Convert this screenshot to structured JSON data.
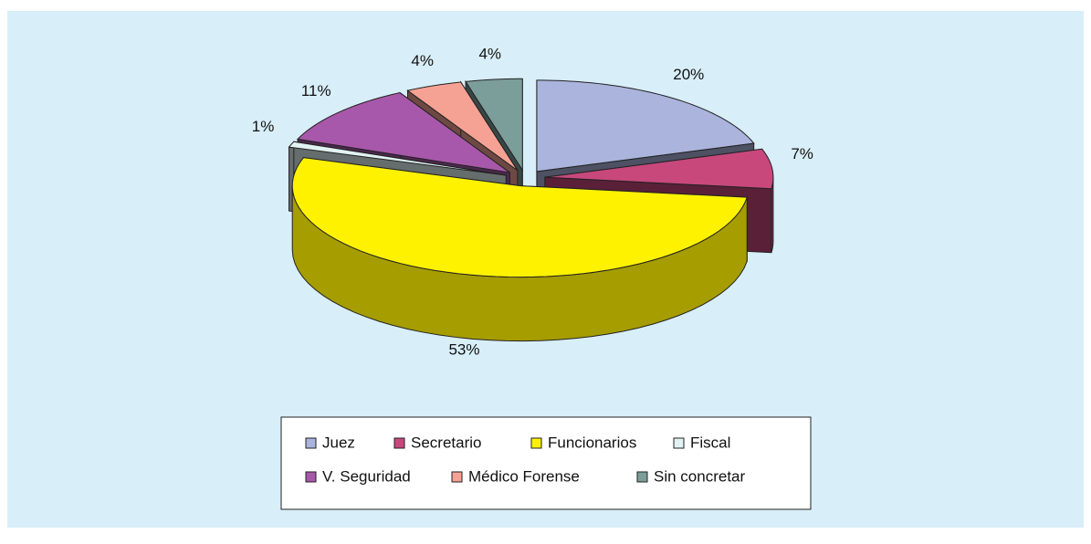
{
  "chart_data": {
    "type": "pie3d",
    "categories": [
      "Juez",
      "Secretario",
      "Funcionarios",
      "Fiscal",
      "V. Seguridad",
      "Médico Forense",
      "Sin concretar"
    ],
    "values": [
      20,
      7,
      53,
      1,
      11,
      4,
      4
    ],
    "value_labels": [
      "20%",
      "7%",
      "53%",
      "1%",
      "11%",
      "4%",
      "4%"
    ],
    "colors": [
      "#aab4dc",
      "#c8487c",
      "#fff200",
      "#e2f2f2",
      "#a858aa",
      "#f5a294",
      "#7c9e9a"
    ],
    "legend": "bottom"
  }
}
